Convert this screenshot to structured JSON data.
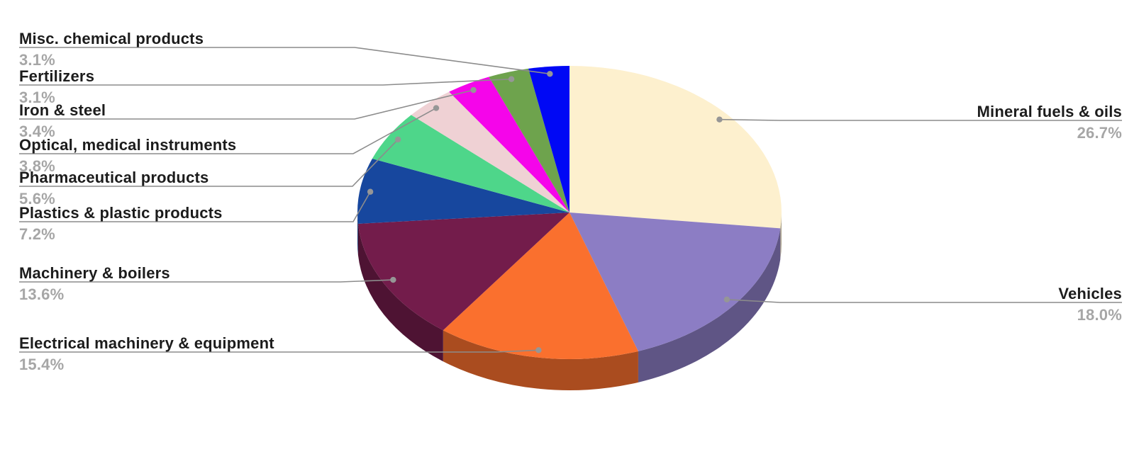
{
  "chart_data": {
    "type": "pie",
    "style": "3d-pie",
    "title": "",
    "unit": "%",
    "direction": "clockwise",
    "start_angle_deg": 0,
    "legend_position": "callout-labels",
    "slices": [
      {
        "label": "Mineral fuels & oils",
        "value": 26.7,
        "pct_label": "26.7%",
        "color": "#FDF0CE",
        "label_side": "right"
      },
      {
        "label": "Vehicles",
        "value": 18.0,
        "pct_label": "18.0%",
        "color": "#8C7DC4",
        "label_side": "right"
      },
      {
        "label": "Electrical machinery & equipment",
        "value": 15.4,
        "pct_label": "15.4%",
        "color": "#FA702E",
        "label_side": "left"
      },
      {
        "label": "Machinery & boilers",
        "value": 13.6,
        "pct_label": "13.6%",
        "color": "#731C4B",
        "label_side": "left"
      },
      {
        "label": "Plastics & plastic products",
        "value": 7.2,
        "pct_label": "7.2%",
        "color": "#17479E",
        "label_side": "left"
      },
      {
        "label": "Pharmaceutical products",
        "value": 5.6,
        "pct_label": "5.6%",
        "color": "#4ED68A",
        "label_side": "left"
      },
      {
        "label": "Optical, medical instruments",
        "value": 3.8,
        "pct_label": "3.8%",
        "color": "#EFD1D4",
        "label_side": "left"
      },
      {
        "label": "Iron & steel",
        "value": 3.4,
        "pct_label": "3.4%",
        "color": "#F505EA",
        "label_side": "left"
      },
      {
        "label": "Fertilizers",
        "value": 3.1,
        "pct_label": "3.1%",
        "color": "#6EA34D",
        "label_side": "left"
      },
      {
        "label": "Misc. chemical products",
        "value": 3.1,
        "pct_label": "3.1%",
        "color": "#0008F5",
        "label_side": "left"
      }
    ],
    "colors": {
      "background": "#ffffff",
      "leader_line": "#8c8c8c",
      "leader_dot": "#969696",
      "label_text": "#1c1c1c",
      "percent_text": "#a6a6a6"
    }
  }
}
